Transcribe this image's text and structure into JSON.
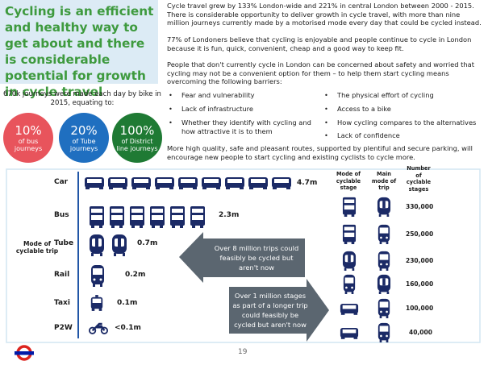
{
  "heading": "Cycling is an efficient and healthy way to get about and there is considerable potential for growth in cycle travel",
  "intro": "670k journeys were made each day by bike in 2015, equating to:",
  "stats": [
    {
      "value": "10%",
      "label": "of bus journeys"
    },
    {
      "value": "20%",
      "label": "of Tube journeys"
    },
    {
      "value": "100%",
      "label": "of District line journeys"
    }
  ],
  "paragraphs": [
    "Cycle travel grew by 133% London-wide and 221% in central London between 2000 - 2015. There is considerable opportunity to deliver growth in cycle travel, with more than nine million journeys currently made by a motorised mode every day that could be cycled instead.",
    "77% of Londoners believe that cycling is enjoyable and people continue to cycle in London because it is fun, quick, convenient, cheap and a good way to keep fit.",
    "People that don't currently cycle in London can be concerned about safety and worried that cycling may not be a convenient option for them – to help them start cycling means overcoming the following barriers:"
  ],
  "barriers_left": [
    "Fear and vulnerability",
    "Lack of infrastructure",
    "Whether they identify with cycling and how attractive it is to them"
  ],
  "barriers_right": [
    "The physical effort of cycling",
    "Access to a bike",
    "How cycling compares to the alternatives",
    "Lack of confidence"
  ],
  "closing": "More high quality, safe and pleasant routes, supported by plentiful and secure parking, will encourage new people to start cycling and existing cyclists to cycle more.",
  "diagram": {
    "axis_label": "Mode of cyclable trip",
    "rows": [
      {
        "mode": "Car",
        "trips": "4.7m"
      },
      {
        "mode": "Bus",
        "trips": "2.3m"
      },
      {
        "mode": "Tube",
        "trips": "0.7m"
      },
      {
        "mode": "Rail",
        "trips": "0.2m"
      },
      {
        "mode": "Taxi",
        "trips": "0.1m"
      },
      {
        "mode": "P2W",
        "trips": "<0.1m"
      }
    ],
    "callouts": [
      "Over 8 million trips could feasibly be cycled but aren't now",
      "Over 1 million stages as part of a longer trip could feasibly be cycled but aren't now"
    ],
    "headers": [
      "Mode of cyclable stage",
      "Main mode of trip",
      "Number of cyclable stages"
    ],
    "stages": [
      "330,000",
      "250,000",
      "230,000",
      "160,000",
      "100,000",
      "40,000"
    ]
  },
  "page_number": "19"
}
